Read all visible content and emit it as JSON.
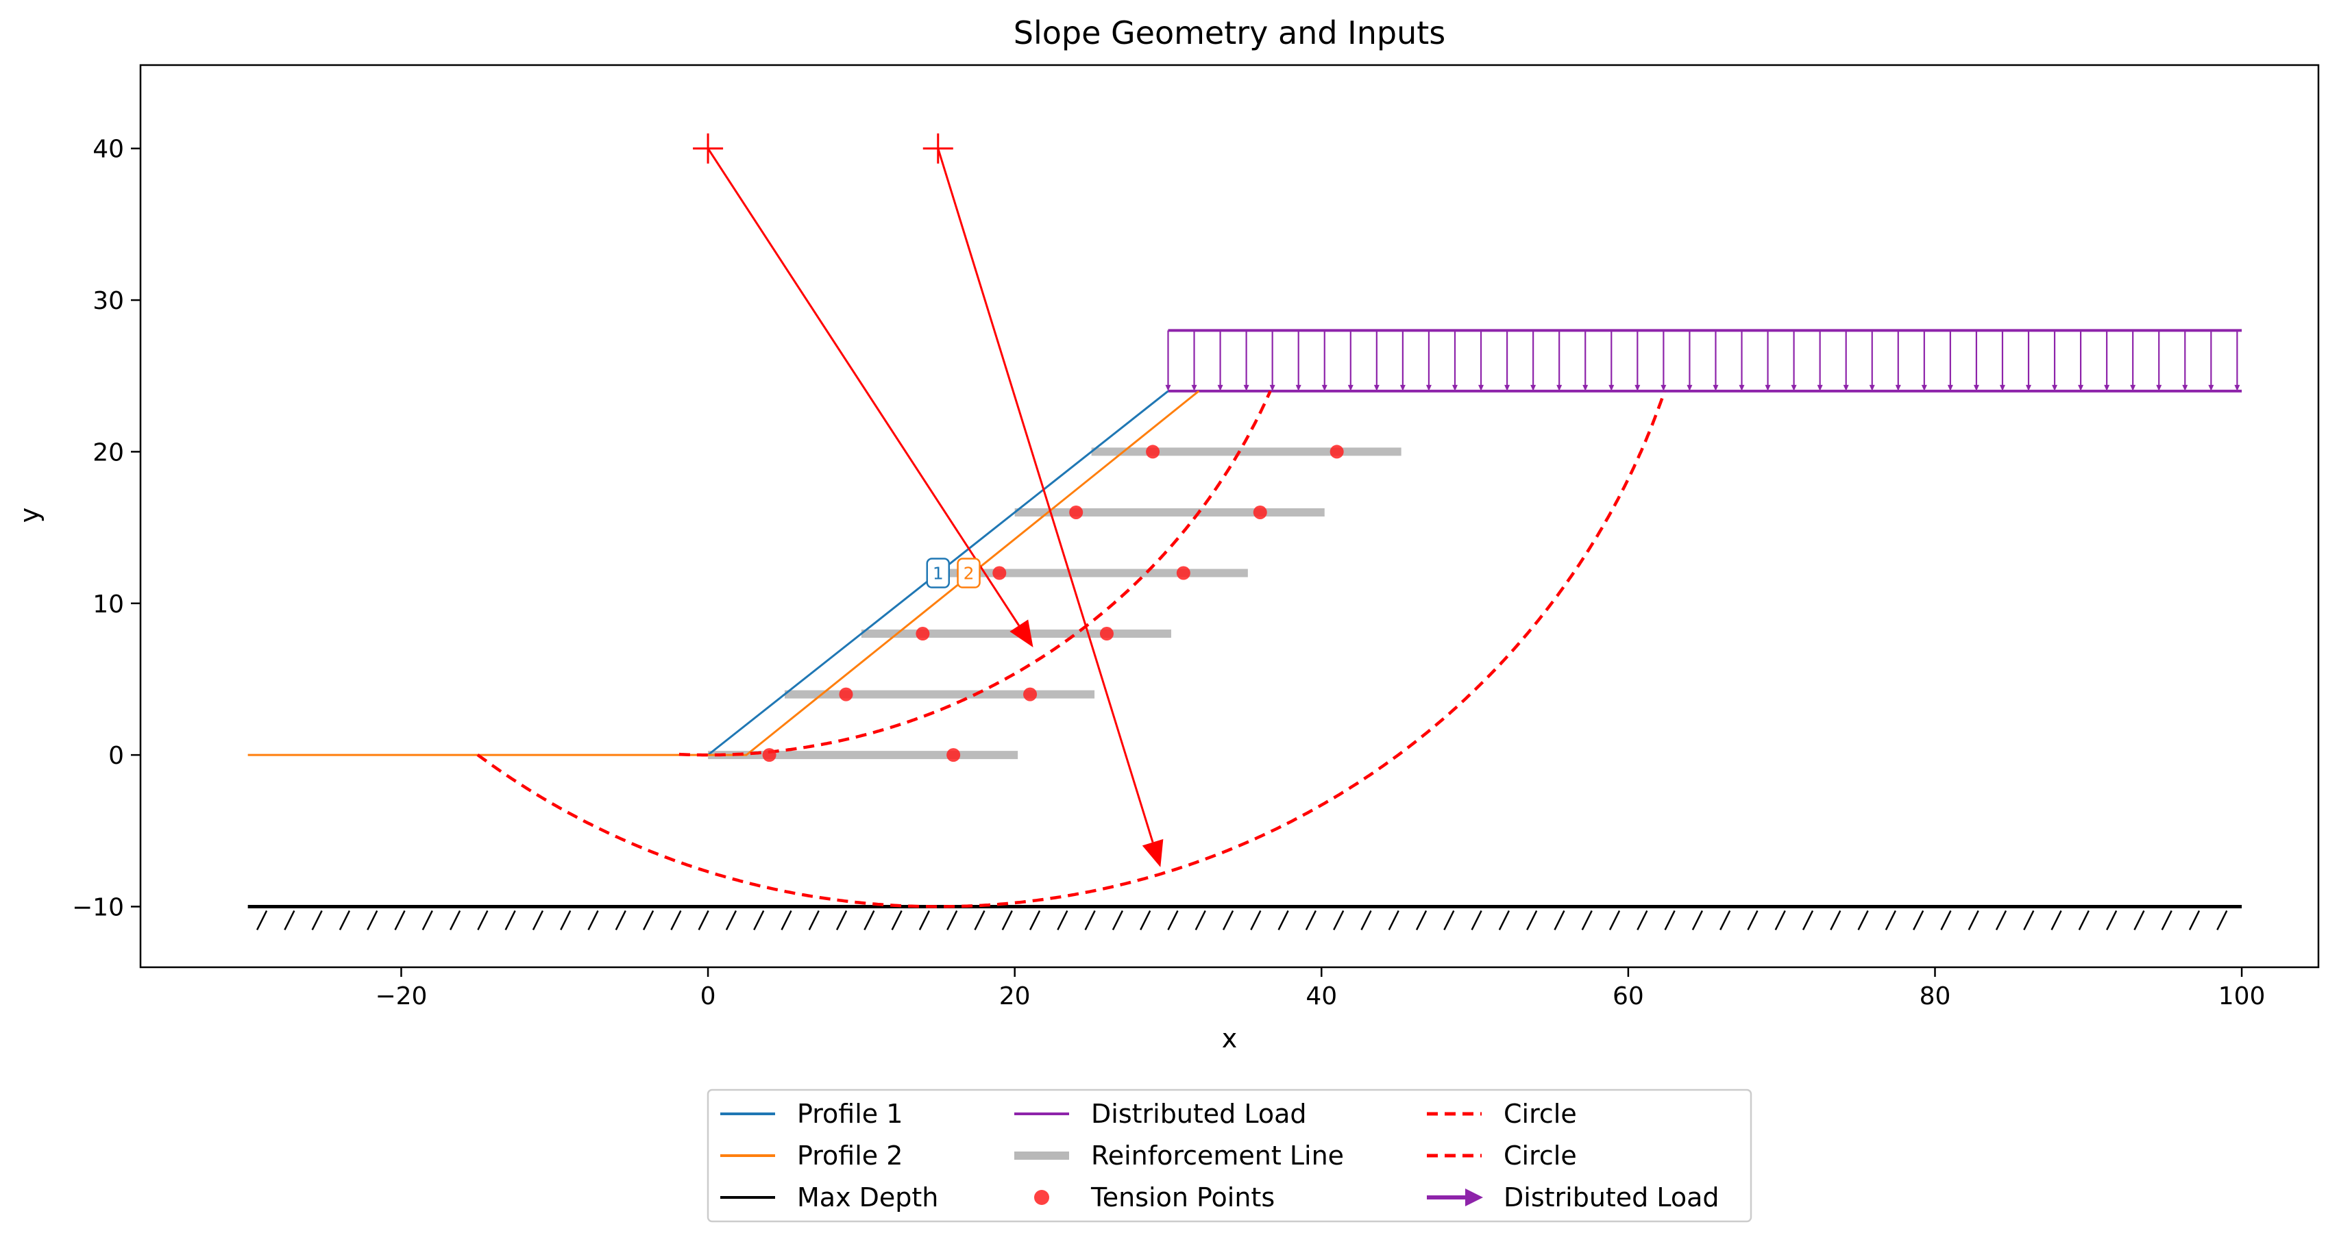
{
  "chart_data": {
    "type": "line",
    "title": "Slope Geometry and Inputs",
    "xlabel": "x",
    "ylabel": "y",
    "xlim": [
      -37,
      105
    ],
    "ylim": [
      -14,
      45.5
    ],
    "x_ticks": [
      -20,
      0,
      20,
      40,
      60,
      80,
      100
    ],
    "y_ticks": [
      -10,
      0,
      10,
      20,
      30,
      40
    ],
    "x_tick_labels": [
      "−20",
      "0",
      "20",
      "40",
      "60",
      "80",
      "100"
    ],
    "y_tick_labels": [
      "−10",
      "0",
      "10",
      "20",
      "30",
      "40"
    ],
    "grid": false,
    "legend_placement": "below, centered, 3 columns",
    "colors": {
      "profile1": "#1f77b4",
      "profile2": "#ff7f0e",
      "max_depth": "#000000",
      "distributed_load": "#8e24aa",
      "reinforcement": "#b8b8b8",
      "tension": "#ff2020",
      "circle": "#ff0000"
    },
    "profiles": [
      {
        "name": "Profile 1",
        "marker": "1",
        "marker_at": [
          15,
          12
        ],
        "points": [
          [
            0,
            0
          ],
          [
            30,
            24
          ]
        ]
      },
      {
        "name": "Profile 2",
        "marker": "2",
        "marker_at": [
          17,
          12
        ],
        "points": [
          [
            -30,
            0
          ],
          [
            2.5,
            0
          ],
          [
            32,
            24
          ]
        ]
      }
    ],
    "max_depth": {
      "name": "Max Depth",
      "y": -10,
      "x_range": [
        -30,
        100
      ]
    },
    "distributed_load": {
      "name": "Distributed Load",
      "x_range": [
        30,
        100
      ],
      "y_base": 24,
      "y_top": 28,
      "arrow_spacing": 1.7
    },
    "reinforcement_lines": {
      "name": "Reinforcement Line",
      "lines": [
        {
          "y": 0,
          "x_start": 0,
          "x_end": 20.2
        },
        {
          "y": 4,
          "x_start": 5,
          "x_end": 25.2
        },
        {
          "y": 8,
          "x_start": 10,
          "x_end": 30.2
        },
        {
          "y": 12,
          "x_start": 15,
          "x_end": 35.2
        },
        {
          "y": 16,
          "x_start": 20,
          "x_end": 40.2
        },
        {
          "y": 20,
          "x_start": 25,
          "x_end": 45.2
        }
      ]
    },
    "tension_points": {
      "name": "Tension Points",
      "points": [
        [
          4,
          0
        ],
        [
          16,
          0
        ],
        [
          9,
          4
        ],
        [
          21,
          4
        ],
        [
          14,
          8
        ],
        [
          26,
          8
        ],
        [
          19,
          12
        ],
        [
          31,
          12
        ],
        [
          24,
          16
        ],
        [
          36,
          16
        ],
        [
          29,
          20
        ],
        [
          41,
          20
        ]
      ]
    },
    "circles": [
      {
        "name": "Circle",
        "center": [
          0,
          40
        ],
        "radius": 40,
        "arrow_tip": [
          21.2,
          7.1
        ]
      },
      {
        "name": "Circle",
        "center": [
          15,
          40
        ],
        "radius": 50,
        "arrow_tip": [
          29.5,
          -7.4
        ]
      }
    ],
    "legend": [
      {
        "label": "Profile 1",
        "style": "line",
        "color": "#1f77b4"
      },
      {
        "label": "Profile 2",
        "style": "line",
        "color": "#ff7f0e"
      },
      {
        "label": "Max Depth",
        "style": "line",
        "color": "#000000"
      },
      {
        "label": "Distributed Load",
        "style": "line",
        "color": "#8e24aa"
      },
      {
        "label": "Reinforcement Line",
        "style": "thick",
        "color": "#b8b8b8"
      },
      {
        "label": "Tension Points",
        "style": "dot",
        "color": "#ff2020"
      },
      {
        "label": "Circle",
        "style": "dashed",
        "color": "#ff0000"
      },
      {
        "label": "Circle",
        "style": "dashed",
        "color": "#ff0000"
      },
      {
        "label": "Distributed Load",
        "style": "arrow",
        "color": "#8e24aa"
      }
    ]
  }
}
